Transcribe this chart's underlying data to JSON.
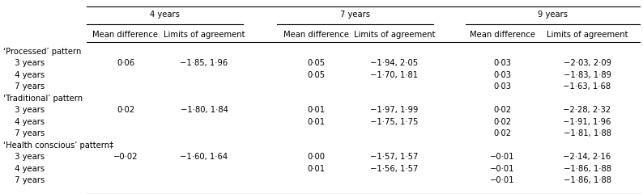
{
  "col_headers_top": [
    "4 years",
    "7 years",
    "9 years"
  ],
  "col_headers_sub": [
    "Mean difference",
    "Limits of agreement",
    "Mean difference",
    "Limits of agreement",
    "Mean difference",
    "Limits of agreement"
  ],
  "row_groups": [
    {
      "group_label": "‘Processed’ pattern",
      "rows": [
        {
          "label": "  3 years",
          "vals": [
            "0·06",
            "−1·85, 1·96",
            "0·05",
            "−1·94, 2·05",
            "0·03",
            "−2·03, 2·09"
          ]
        },
        {
          "label": "  4 years",
          "vals": [
            "",
            "",
            "0·05",
            "−1·70, 1·81",
            "0·03",
            "−1·83, 1·89"
          ]
        },
        {
          "label": "  7 years",
          "vals": [
            "",
            "",
            "",
            "",
            "0·03",
            "−1·63, 1·68"
          ]
        }
      ]
    },
    {
      "group_label": "‘Traditional’ pattern",
      "rows": [
        {
          "label": "  3 years",
          "vals": [
            "0·02",
            "−1·80, 1·84",
            "0·01",
            "−1·97, 1·99",
            "0·02",
            "−2·28, 2·32"
          ]
        },
        {
          "label": "  4 years",
          "vals": [
            "",
            "",
            "0·01",
            "−1·75, 1·75",
            "0·02",
            "−1·91, 1·96"
          ]
        },
        {
          "label": "  7 years",
          "vals": [
            "",
            "",
            "",
            "",
            "0·02",
            "−1·81, 1·88"
          ]
        }
      ]
    },
    {
      "group_label": "‘Health conscious’ pattern‡",
      "rows": [
        {
          "label": "  3 years",
          "vals": [
            "−0·02",
            "−1·60, 1·64",
            "0·00",
            "−1·57, 1·57",
            "−0·01",
            "−2·14, 2·16"
          ]
        },
        {
          "label": "  4 years",
          "vals": [
            "",
            "",
            "0·01",
            "−1·56, 1·57",
            "−0·01",
            "−1·86, 1·88"
          ]
        },
        {
          "label": "  7 years",
          "vals": [
            "",
            "",
            "",
            "",
            "−0·01",
            "−1·86, 1·88"
          ]
        }
      ]
    }
  ],
  "figsize": [
    7.94,
    2.4
  ],
  "dpi": 100,
  "font_size": 7.2,
  "bg_color": "#ffffff"
}
